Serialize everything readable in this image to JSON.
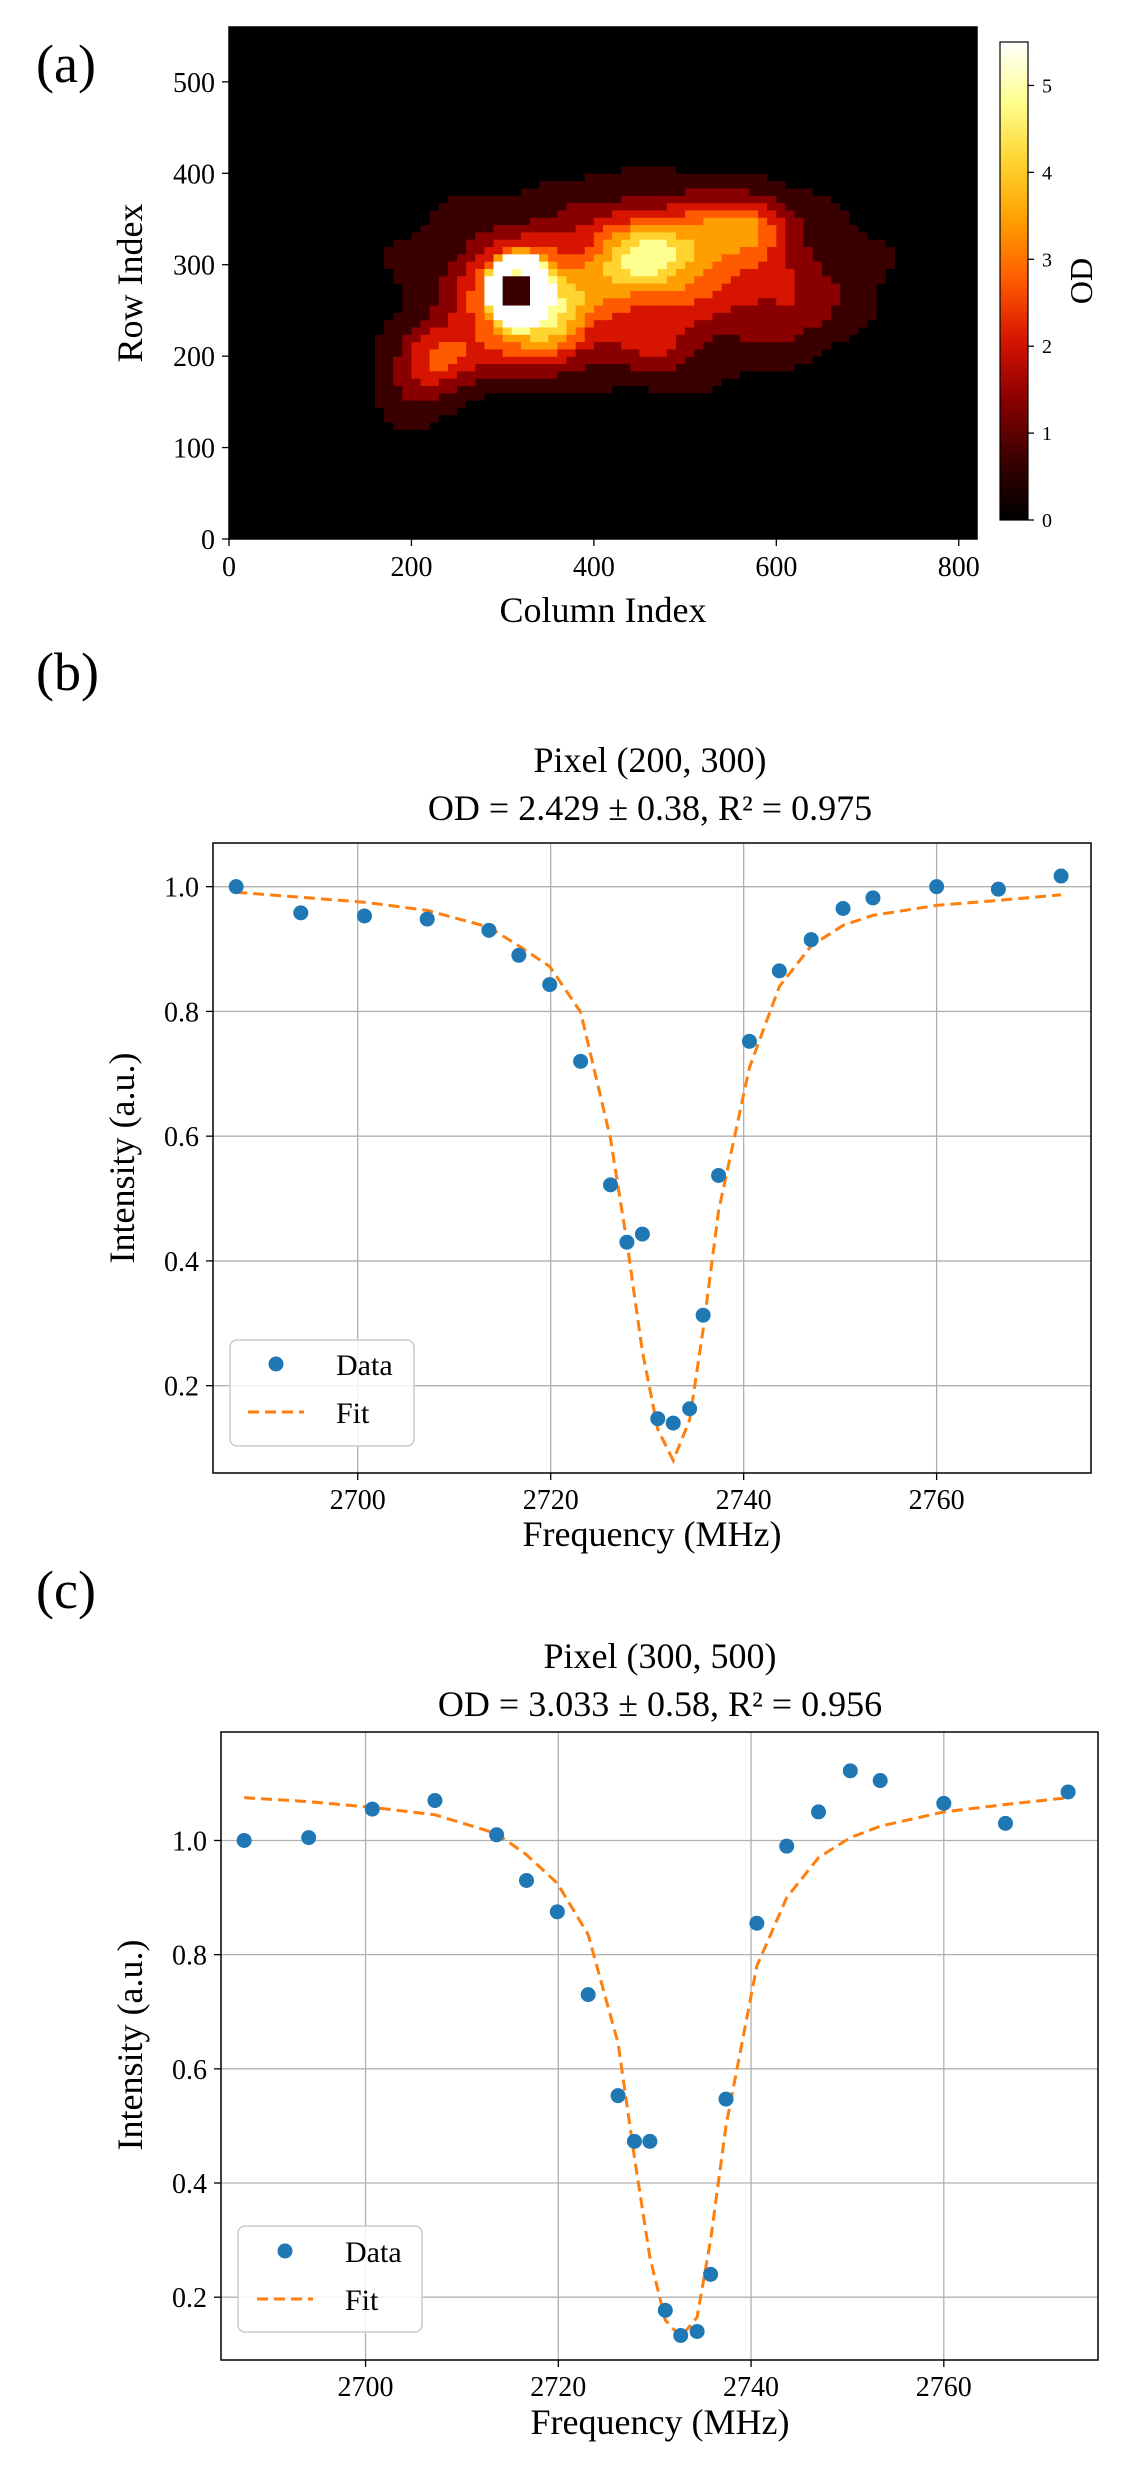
{
  "chart_data": [
    {
      "type": "heatmap",
      "panel_label": "(a)",
      "title": "",
      "xlabel": "Column Index",
      "ylabel": "Row Index",
      "xlim": [
        0,
        820
      ],
      "ylim": [
        0,
        560
      ],
      "xticks": [
        0,
        200,
        400,
        600,
        800
      ],
      "yticks": [
        0,
        100,
        200,
        300,
        400,
        500
      ],
      "colorbar": {
        "label": "OD",
        "range": [
          0,
          5.5
        ],
        "ticks": [
          0,
          1,
          2,
          3,
          4,
          5
        ],
        "colormap": "hot",
        "colors": [
          "#000000",
          "#3a0000",
          "#8a0000",
          "#d61400",
          "#ff5a00",
          "#ff9e00",
          "#ffd430",
          "#ffff8f",
          "#ffffff"
        ]
      },
      "blobs": [
        {
          "col": 450,
          "row": 290,
          "sx": 210,
          "sy": 85,
          "od": 1.7
        },
        {
          "col": 320,
          "row": 270,
          "sx": 60,
          "sy": 50,
          "od": 3.4
        },
        {
          "col": 440,
          "row": 300,
          "sx": 55,
          "sy": 50,
          "od": 2.0
        },
        {
          "col": 500,
          "row": 320,
          "sx": 70,
          "sy": 45,
          "od": 2.1
        },
        {
          "col": 570,
          "row": 345,
          "sx": 45,
          "sy": 30,
          "od": 2.0
        },
        {
          "col": 230,
          "row": 200,
          "sx": 40,
          "sy": 35,
          "od": 1.9
        },
        {
          "col": 360,
          "row": 230,
          "sx": 40,
          "sy": 40,
          "od": 1.6
        },
        {
          "col": 300,
          "row": 210,
          "sx": 70,
          "sy": 40,
          "od": 1.2
        },
        {
          "col": 470,
          "row": 210,
          "sx": 60,
          "sy": 40,
          "od": 1.0
        },
        {
          "col": 610,
          "row": 260,
          "sx": 60,
          "sy": 50,
          "od": 1.0
        },
        {
          "col": 200,
          "row": 160,
          "sx": 40,
          "sy": 40,
          "od": 0.9
        }
      ],
      "ring": {
        "col": 318,
        "row": 272,
        "od": 5.2
      }
    },
    {
      "type": "scatter",
      "panel_label": "(b)",
      "title": "Pixel (200, 300)",
      "subtitle": "OD = 2.429 ± 0.38, R² = 0.975",
      "xlabel": "Frequency (MHz)",
      "ylabel": "Intensity (a.u.)",
      "xlim": [
        2685,
        2776
      ],
      "ylim": [
        0.06,
        1.07
      ],
      "xticks": [
        2700,
        2720,
        2740,
        2760
      ],
      "yticks": [
        0.2,
        0.4,
        0.6,
        0.8,
        1.0
      ],
      "ytick_labels": [
        "0.2",
        "0.4",
        "0.6",
        "0.8",
        "1.0"
      ],
      "legend": {
        "position": "lower-left",
        "entries": [
          "Data",
          "Fit"
        ]
      },
      "series": [
        {
          "name": "Data",
          "kind": "points",
          "color": "#1f77b4",
          "x": [
            2687.4,
            2694.1,
            2700.7,
            2707.2,
            2713.6,
            2716.7,
            2719.9,
            2723.1,
            2726.2,
            2727.9,
            2729.5,
            2731.1,
            2732.7,
            2734.4,
            2735.8,
            2737.4,
            2740.6,
            2743.7,
            2747.0,
            2750.3,
            2753.4,
            2760.0,
            2766.4,
            2772.9
          ],
          "y": [
            1.0,
            0.958,
            0.953,
            0.948,
            0.93,
            0.89,
            0.843,
            0.72,
            0.522,
            0.43,
            0.443,
            0.147,
            0.14,
            0.163,
            0.313,
            0.537,
            0.752,
            0.865,
            0.915,
            0.965,
            0.982,
            1.0,
            0.996,
            1.017
          ]
        },
        {
          "name": "Fit",
          "kind": "dashed-line",
          "color": "#ff7f0e",
          "x": [
            2687.4,
            2694.1,
            2700.7,
            2707.2,
            2713.6,
            2716.7,
            2719.9,
            2723.1,
            2726.2,
            2727.9,
            2729.5,
            2731.1,
            2732.7,
            2734.4,
            2735.8,
            2737.4,
            2740.6,
            2743.7,
            2747.0,
            2750.3,
            2753.4,
            2760.0,
            2766.4,
            2772.9
          ],
          "y": [
            0.991,
            0.983,
            0.975,
            0.962,
            0.935,
            0.905,
            0.872,
            0.799,
            0.596,
            0.43,
            0.255,
            0.13,
            0.08,
            0.145,
            0.29,
            0.48,
            0.71,
            0.84,
            0.905,
            0.938,
            0.954,
            0.97,
            0.978,
            0.987
          ]
        }
      ]
    },
    {
      "type": "scatter",
      "panel_label": "(c)",
      "title": "Pixel (300, 500)",
      "subtitle": "OD = 3.033 ± 0.58, R² = 0.956",
      "xlabel": "Frequency (MHz)",
      "ylabel": "Intensity (a.u.)",
      "xlim": [
        2685,
        2776
      ],
      "ylim": [
        0.09,
        1.19
      ],
      "xticks": [
        2700,
        2720,
        2740,
        2760
      ],
      "yticks": [
        0.2,
        0.4,
        0.6,
        0.8,
        1.0
      ],
      "ytick_labels": [
        "0.2",
        "0.4",
        "0.6",
        "0.8",
        "1.0"
      ],
      "legend": {
        "position": "lower-left",
        "entries": [
          "Data",
          "Fit"
        ]
      },
      "series": [
        {
          "name": "Data",
          "kind": "points",
          "color": "#1f77b4",
          "x": [
            2687.4,
            2694.1,
            2700.7,
            2707.2,
            2713.6,
            2716.7,
            2719.9,
            2723.1,
            2726.2,
            2727.9,
            2729.5,
            2731.1,
            2732.7,
            2734.4,
            2735.8,
            2737.4,
            2740.6,
            2743.7,
            2747.0,
            2750.3,
            2753.4,
            2760.0,
            2766.4,
            2772.9
          ],
          "y": [
            1.0,
            1.005,
            1.055,
            1.07,
            1.01,
            0.93,
            0.875,
            0.73,
            0.553,
            0.473,
            0.473,
            0.177,
            0.133,
            0.14,
            0.24,
            0.547,
            0.855,
            0.99,
            1.05,
            1.122,
            1.105,
            1.065,
            1.03,
            1.085
          ]
        },
        {
          "name": "Fit",
          "kind": "dashed-line",
          "color": "#ff7f0e",
          "x": [
            2687.4,
            2694.1,
            2700.7,
            2707.2,
            2713.6,
            2716.7,
            2719.9,
            2723.1,
            2726.2,
            2727.9,
            2729.5,
            2731.1,
            2732.7,
            2734.4,
            2735.8,
            2737.4,
            2740.6,
            2743.7,
            2747.0,
            2750.3,
            2753.4,
            2760.0,
            2766.4,
            2772.9
          ],
          "y": [
            1.075,
            1.068,
            1.058,
            1.045,
            1.012,
            0.975,
            0.925,
            0.835,
            0.645,
            0.445,
            0.27,
            0.16,
            0.13,
            0.165,
            0.3,
            0.5,
            0.78,
            0.9,
            0.97,
            1.005,
            1.025,
            1.05,
            1.063,
            1.075
          ]
        }
      ]
    }
  ]
}
